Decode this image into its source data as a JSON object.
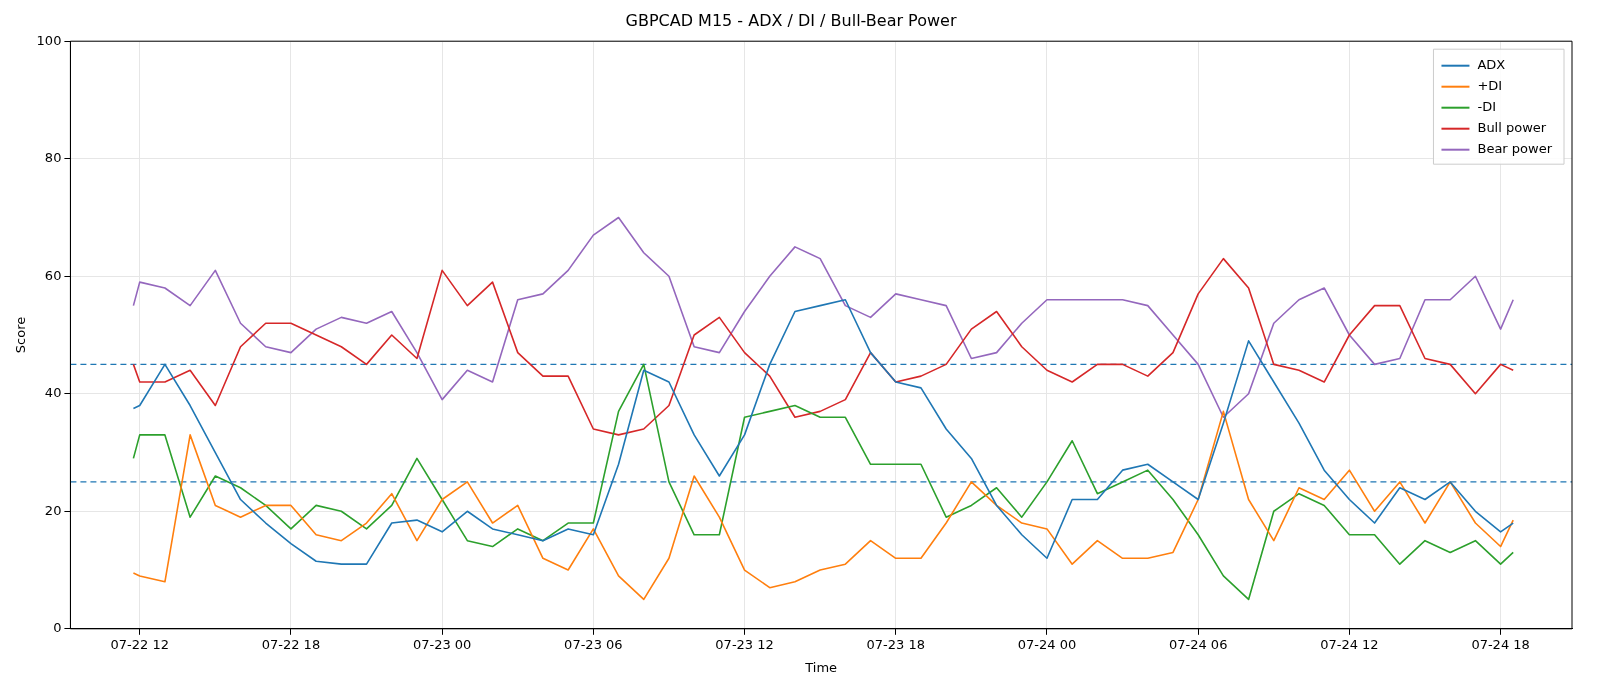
{
  "chart_data": {
    "type": "line",
    "title": "GBPCAD M15 - ADX / DI / Bull-Bear Power",
    "xlabel": "Time",
    "ylabel": "Score",
    "x": [
      "--07-22T11:45",
      "--07-22T12:00",
      "--07-22T13:00",
      "--07-22T14:00",
      "--07-22T15:00",
      "--07-22T16:00",
      "--07-22T17:00",
      "--07-22T18:00",
      "--07-22T19:00",
      "--07-22T20:00",
      "--07-22T21:00",
      "--07-22T22:00",
      "--07-22T23:00",
      "--07-23T00:00",
      "--07-23T01:00",
      "--07-23T02:00",
      "--07-23T03:00",
      "--07-23T04:00",
      "--07-23T05:00",
      "--07-23T06:00",
      "--07-23T07:00",
      "--07-23T08:00",
      "--07-23T09:00",
      "--07-23T10:00",
      "--07-23T11:00",
      "--07-23T12:00",
      "--07-23T13:00",
      "--07-23T14:00",
      "--07-23T15:00",
      "--07-23T16:00",
      "--07-23T17:00",
      "--07-23T18:00",
      "--07-23T19:00",
      "--07-23T20:00",
      "--07-23T21:00",
      "--07-23T22:00",
      "--07-23T23:00",
      "--07-24T00:00",
      "--07-24T01:00",
      "--07-24T02:00",
      "--07-24T03:00",
      "--07-24T04:00",
      "--07-24T05:00",
      "--07-24T06:00",
      "--07-24T07:00",
      "--07-24T08:00",
      "--07-24T09:00",
      "--07-24T10:00",
      "--07-24T11:00",
      "--07-24T12:00",
      "--07-24T13:00",
      "--07-24T14:00",
      "--07-24T15:00",
      "--07-24T16:00",
      "--07-24T17:00",
      "--07-24T18:00",
      "--07-24T18:30"
    ],
    "series": [
      {
        "name": "ADX",
        "color": "#1f77b4",
        "values": [
          37.5,
          38,
          45,
          38,
          30,
          22,
          18,
          14.5,
          11.5,
          11,
          11,
          18,
          18.5,
          16.5,
          20,
          17,
          16,
          15,
          17,
          16,
          28,
          44,
          42,
          33,
          26,
          33,
          45,
          54,
          55,
          56,
          47,
          42,
          41,
          34,
          29,
          21,
          16,
          12,
          22,
          22,
          27,
          28,
          25,
          22,
          35,
          49,
          42,
          35,
          27,
          22,
          18,
          24,
          22,
          25,
          20,
          16.5,
          18
        ]
      },
      {
        "name": "+DI",
        "color": "#ff7f0e",
        "values": [
          9.5,
          9,
          8,
          33,
          21,
          19,
          21,
          21,
          16,
          15,
          18,
          23,
          15,
          22,
          25,
          18,
          21,
          12,
          10,
          17,
          9,
          5,
          12,
          26,
          19,
          10,
          7,
          8,
          10,
          11,
          15,
          12,
          12,
          18,
          25,
          21,
          18,
          17,
          11,
          15,
          12,
          12,
          13,
          22,
          37,
          22,
          15,
          24,
          22,
          27,
          20,
          25,
          18,
          25,
          18,
          14,
          18.5
        ]
      },
      {
        "name": "-DI",
        "color": "#2ca02c",
        "values": [
          29,
          33,
          33,
          19,
          26,
          24,
          21,
          17,
          21,
          20,
          17,
          21,
          29,
          22,
          15,
          14,
          17,
          15,
          18,
          18,
          37,
          45,
          25,
          16,
          16,
          36,
          37,
          38,
          36,
          36,
          28,
          28,
          28,
          19,
          21,
          24,
          19,
          25,
          32,
          23,
          25,
          27,
          22,
          16,
          9,
          5,
          20,
          23,
          21,
          16,
          16,
          11,
          15,
          13,
          15,
          11,
          13
        ]
      },
      {
        "name": "Bull power",
        "color": "#d62728",
        "values": [
          45,
          42,
          42,
          44,
          38,
          48,
          52,
          52,
          50,
          48,
          45,
          50,
          46,
          61,
          55,
          59,
          47,
          43,
          43,
          34,
          33,
          34,
          38,
          50,
          53,
          47,
          43,
          36,
          37,
          39,
          47,
          42,
          43,
          45,
          51,
          54,
          48,
          44,
          42,
          45,
          45,
          43,
          47,
          57,
          63,
          58,
          45,
          44,
          42,
          50,
          55,
          55,
          46,
          45,
          40,
          45,
          44
        ]
      },
      {
        "name": "Bear power",
        "color": "#9467bd",
        "values": [
          55,
          59,
          58,
          55,
          61,
          52,
          48,
          47,
          51,
          53,
          52,
          54,
          47,
          39,
          44,
          42,
          56,
          57,
          61,
          67,
          70,
          64,
          60,
          48,
          47,
          54,
          60,
          65,
          63,
          55,
          53,
          57,
          56,
          55,
          46,
          47,
          52,
          56,
          56,
          56,
          56,
          55,
          50,
          45,
          36,
          40,
          52,
          56,
          58,
          50,
          45,
          46,
          56,
          56,
          60,
          51,
          56
        ]
      }
    ],
    "xlim": [
      "--07-22T09:15",
      "--07-24T20:50"
    ],
    "xticks": [
      {
        "value": "--07-22T12:00",
        "label": "07-22 12"
      },
      {
        "value": "--07-22T18:00",
        "label": "07-22 18"
      },
      {
        "value": "--07-23T00:00",
        "label": "07-23 00"
      },
      {
        "value": "--07-23T06:00",
        "label": "07-23 06"
      },
      {
        "value": "--07-23T12:00",
        "label": "07-23 12"
      },
      {
        "value": "--07-23T18:00",
        "label": "07-23 18"
      },
      {
        "value": "--07-24T00:00",
        "label": "07-24 00"
      },
      {
        "value": "--07-24T06:00",
        "label": "07-24 06"
      },
      {
        "value": "--07-24T12:00",
        "label": "07-24 12"
      },
      {
        "value": "--07-24T18:00",
        "label": "07-24 18"
      }
    ],
    "ylim": [
      0,
      100
    ],
    "yticks": [
      0,
      20,
      40,
      60,
      80,
      100
    ],
    "ref_lines": [
      {
        "axis": "y",
        "value": 45,
        "color": "#1f77b4",
        "line_style": "dashed"
      },
      {
        "axis": "y",
        "value": 25,
        "color": "#1f77b4",
        "line_style": "dashed"
      }
    ],
    "grid": true,
    "legend": "top right",
    "marker": "none",
    "line_style": "solid"
  }
}
